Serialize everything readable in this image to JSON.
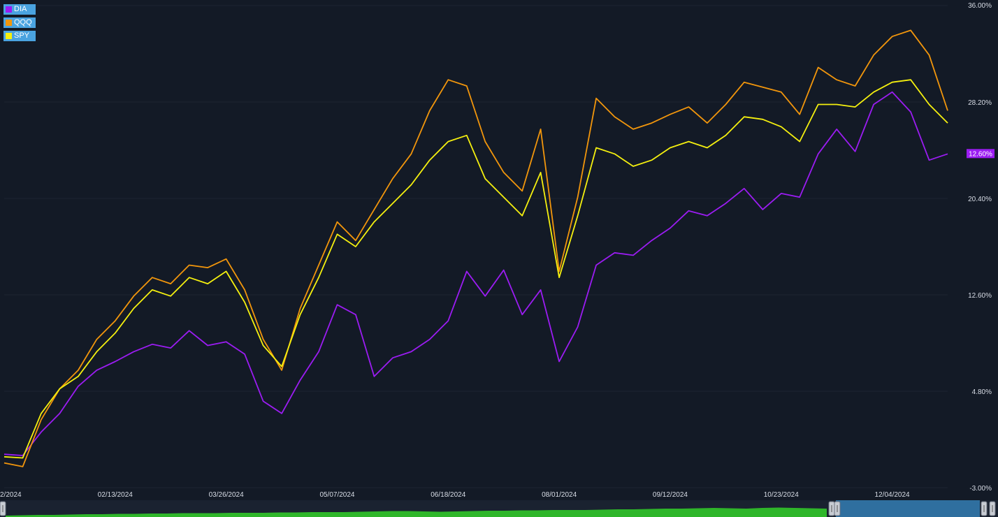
{
  "chart_data": {
    "type": "line",
    "x_labels_visible": [
      "2/2024",
      "02/13/2024",
      "03/26/2024",
      "05/07/2024",
      "06/18/2024",
      "08/01/2024",
      "09/12/2024",
      "10/23/2024",
      "12/04/2024"
    ],
    "y_ticks": [
      "36.00%",
      "28.20%",
      "20.40%",
      "12.60%",
      "4.80%",
      "-3.00%"
    ],
    "ylim": [
      -3.0,
      36.0
    ],
    "y_unit": "%",
    "x": [
      "01/02/2024",
      "01/09/2024",
      "01/16/2024",
      "01/23/2024",
      "01/30/2024",
      "02/06/2024",
      "02/13/2024",
      "02/20/2024",
      "02/27/2024",
      "03/05/2024",
      "03/12/2024",
      "03/19/2024",
      "03/26/2024",
      "04/02/2024",
      "04/09/2024",
      "04/16/2024",
      "04/23/2024",
      "04/30/2024",
      "05/07/2024",
      "05/14/2024",
      "05/21/2024",
      "05/28/2024",
      "06/04/2024",
      "06/11/2024",
      "06/18/2024",
      "06/25/2024",
      "07/02/2024",
      "07/09/2024",
      "07/16/2024",
      "07/23/2024",
      "08/01/2024",
      "08/08/2024",
      "08/15/2024",
      "08/22/2024",
      "08/29/2024",
      "09/05/2024",
      "09/12/2024",
      "09/19/2024",
      "09/26/2024",
      "10/03/2024",
      "10/10/2024",
      "10/17/2024",
      "10/23/2024",
      "10/30/2024",
      "11/06/2024",
      "11/13/2024",
      "11/20/2024",
      "11/27/2024",
      "12/04/2024",
      "12/11/2024",
      "12/18/2024",
      "12/24/2024"
    ],
    "series": [
      {
        "name": "DIA",
        "color": "#9b1cf2",
        "values": [
          -0.3,
          -0.4,
          1.5,
          3.0,
          5.2,
          6.5,
          7.2,
          8.0,
          8.6,
          8.3,
          9.7,
          8.5,
          8.8,
          7.8,
          4.0,
          3.0,
          5.7,
          8.0,
          11.8,
          11.0,
          6.0,
          7.5,
          8.0,
          9.0,
          10.5,
          14.5,
          12.5,
          14.6,
          11.0,
          13.0,
          7.2,
          10.0,
          15.0,
          16.0,
          15.8,
          17.0,
          18.0,
          19.4,
          19.0,
          20.0,
          21.2,
          19.5,
          20.8,
          20.5,
          24.0,
          26.0,
          24.2,
          28.0,
          29.0,
          27.4,
          23.5,
          24.0
        ]
      },
      {
        "name": "QQQ",
        "color": "#f2960c",
        "values": [
          -1.0,
          -1.3,
          2.5,
          5.0,
          6.5,
          9.0,
          10.5,
          12.5,
          14.0,
          13.5,
          15.0,
          14.8,
          15.5,
          13.0,
          9.0,
          6.5,
          11.5,
          15.0,
          18.5,
          17.0,
          19.5,
          22.0,
          24.0,
          27.5,
          30.0,
          29.5,
          25.0,
          22.5,
          21.0,
          26.0,
          14.5,
          20.5,
          28.5,
          27.0,
          26.0,
          26.5,
          27.2,
          27.8,
          26.5,
          28.0,
          29.8,
          29.4,
          29.0,
          27.2,
          31.0,
          30.0,
          29.5,
          32.0,
          33.5,
          34.0,
          32.0,
          27.5
        ]
      },
      {
        "name": "SPY",
        "color": "#f5f00f",
        "values": [
          -0.5,
          -0.6,
          3.0,
          5.0,
          6.0,
          8.0,
          9.5,
          11.5,
          13.0,
          12.5,
          14.0,
          13.5,
          14.5,
          12.0,
          8.5,
          6.8,
          11.0,
          14.0,
          17.5,
          16.5,
          18.5,
          20.0,
          21.5,
          23.5,
          25.0,
          25.5,
          22.0,
          20.5,
          19.0,
          22.5,
          14.0,
          19.0,
          24.5,
          24.0,
          23.0,
          23.5,
          24.5,
          25.0,
          24.5,
          25.5,
          27.0,
          26.8,
          26.2,
          25.0,
          28.0,
          28.0,
          27.8,
          29.0,
          29.8,
          30.0,
          28.0,
          26.5
        ]
      }
    ],
    "last_value_label": "12.60%"
  },
  "legend": [
    {
      "label": "DIA",
      "color": "#9b1cf2"
    },
    {
      "label": "QQQ",
      "color": "#f2960c"
    },
    {
      "label": "SPY",
      "color": "#f5f00f"
    }
  ],
  "navigator": {
    "fill_color": "#2fb62a",
    "volume_profile": [
      0.2,
      0.25,
      0.3,
      0.3,
      0.35,
      0.4,
      0.4,
      0.45,
      0.45,
      0.5,
      0.5,
      0.55,
      0.55,
      0.55,
      0.6,
      0.6,
      0.6,
      0.65,
      0.65,
      0.7,
      0.7,
      0.7,
      0.75,
      0.8,
      0.85,
      0.85,
      0.8,
      0.75,
      0.8,
      0.85,
      0.9,
      0.9,
      0.95,
      0.95,
      1.0,
      1.0,
      1.0,
      1.05,
      1.1,
      1.1,
      1.15,
      1.2,
      1.2,
      1.25,
      1.3,
      1.25,
      1.2,
      1.3,
      1.35,
      1.3,
      1.25,
      1.2
    ]
  }
}
